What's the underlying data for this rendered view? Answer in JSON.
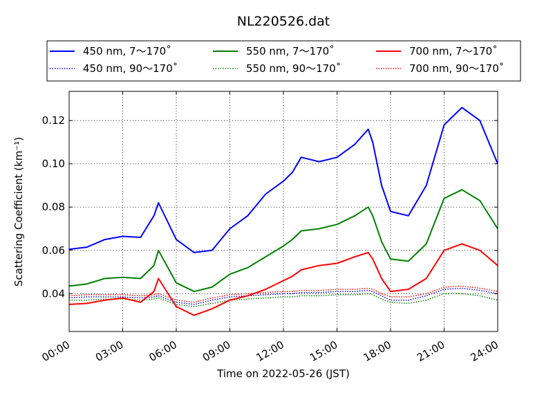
{
  "chart_data": {
    "type": "line",
    "title": "NL220526.dat",
    "xlabel": "Time on 2022-05-26 (JST)",
    "ylabel": "Scattering Coefficient (km⁻¹)",
    "xlim": [
      "00:00",
      "24:00"
    ],
    "ylim": [
      0.0225,
      0.1335
    ],
    "x_ticks": [
      "00:00",
      "03:00",
      "06:00",
      "09:00",
      "12:00",
      "15:00",
      "18:00",
      "21:00",
      "24:00"
    ],
    "y_ticks": [
      "0.04",
      "0.06",
      "0.08",
      "0.10",
      "0.12"
    ],
    "grid": true,
    "legend_position": "top",
    "x": [
      "00:00",
      "01:00",
      "02:00",
      "03:00",
      "04:00",
      "04:45",
      "05:00",
      "06:00",
      "07:00",
      "08:00",
      "09:00",
      "10:00",
      "11:00",
      "12:00",
      "12:30",
      "13:00",
      "14:00",
      "15:00",
      "16:00",
      "16:45",
      "17:00",
      "17:30",
      "18:00",
      "19:00",
      "20:00",
      "21:00",
      "22:00",
      "23:00",
      "24:00"
    ],
    "series": [
      {
        "name": "450 nm, 7～170˚",
        "color": "#0000ff",
        "style": "solid",
        "values": [
          0.0605,
          0.0615,
          0.065,
          0.0665,
          0.066,
          0.076,
          0.082,
          0.065,
          0.059,
          0.06,
          0.07,
          0.076,
          0.086,
          0.092,
          0.096,
          0.103,
          0.101,
          0.103,
          0.109,
          0.116,
          0.11,
          0.09,
          0.078,
          0.076,
          0.09,
          0.118,
          0.126,
          0.12,
          0.1
        ]
      },
      {
        "name": "550 nm, 7～170˚",
        "color": "#008000",
        "style": "solid",
        "values": [
          0.0435,
          0.0445,
          0.047,
          0.0475,
          0.047,
          0.053,
          0.06,
          0.045,
          0.041,
          0.043,
          0.049,
          0.052,
          0.057,
          0.062,
          0.065,
          0.069,
          0.07,
          0.072,
          0.076,
          0.08,
          0.076,
          0.064,
          0.056,
          0.055,
          0.063,
          0.084,
          0.088,
          0.083,
          0.07
        ]
      },
      {
        "name": "700 nm, 7～170˚",
        "color": "#ff0000",
        "style": "solid",
        "values": [
          0.035,
          0.0355,
          0.037,
          0.038,
          0.036,
          0.041,
          0.047,
          0.034,
          0.03,
          0.033,
          0.037,
          0.039,
          0.042,
          0.046,
          0.048,
          0.051,
          0.053,
          0.054,
          0.057,
          0.059,
          0.056,
          0.047,
          0.041,
          0.042,
          0.047,
          0.06,
          0.063,
          0.06,
          0.053
        ]
      },
      {
        "name": "450 nm, 90～170˚",
        "color": "#0000ff",
        "style": "dotted",
        "values": [
          0.038,
          0.0385,
          0.0385,
          0.0385,
          0.038,
          0.0385,
          0.039,
          0.036,
          0.035,
          0.037,
          0.0385,
          0.039,
          0.0395,
          0.04,
          0.04,
          0.0405,
          0.0405,
          0.041,
          0.041,
          0.0415,
          0.041,
          0.039,
          0.037,
          0.037,
          0.039,
          0.042,
          0.0425,
          0.0415,
          0.04
        ]
      },
      {
        "name": "550 nm, 90～170˚",
        "color": "#008000",
        "style": "dotted",
        "values": [
          0.037,
          0.037,
          0.0375,
          0.0375,
          0.037,
          0.0375,
          0.038,
          0.035,
          0.034,
          0.0355,
          0.037,
          0.0375,
          0.038,
          0.0385,
          0.0385,
          0.039,
          0.039,
          0.0395,
          0.0395,
          0.04,
          0.0395,
          0.0375,
          0.036,
          0.0355,
          0.037,
          0.04,
          0.04,
          0.039,
          0.037
        ]
      },
      {
        "name": "700 nm, 90～170˚",
        "color": "#ff0000",
        "style": "dotted",
        "values": [
          0.039,
          0.0395,
          0.0395,
          0.0395,
          0.039,
          0.0395,
          0.04,
          0.037,
          0.036,
          0.038,
          0.0395,
          0.04,
          0.0405,
          0.041,
          0.041,
          0.0415,
          0.0415,
          0.042,
          0.042,
          0.0425,
          0.042,
          0.04,
          0.0385,
          0.0385,
          0.04,
          0.043,
          0.0435,
          0.0425,
          0.041
        ]
      }
    ]
  }
}
